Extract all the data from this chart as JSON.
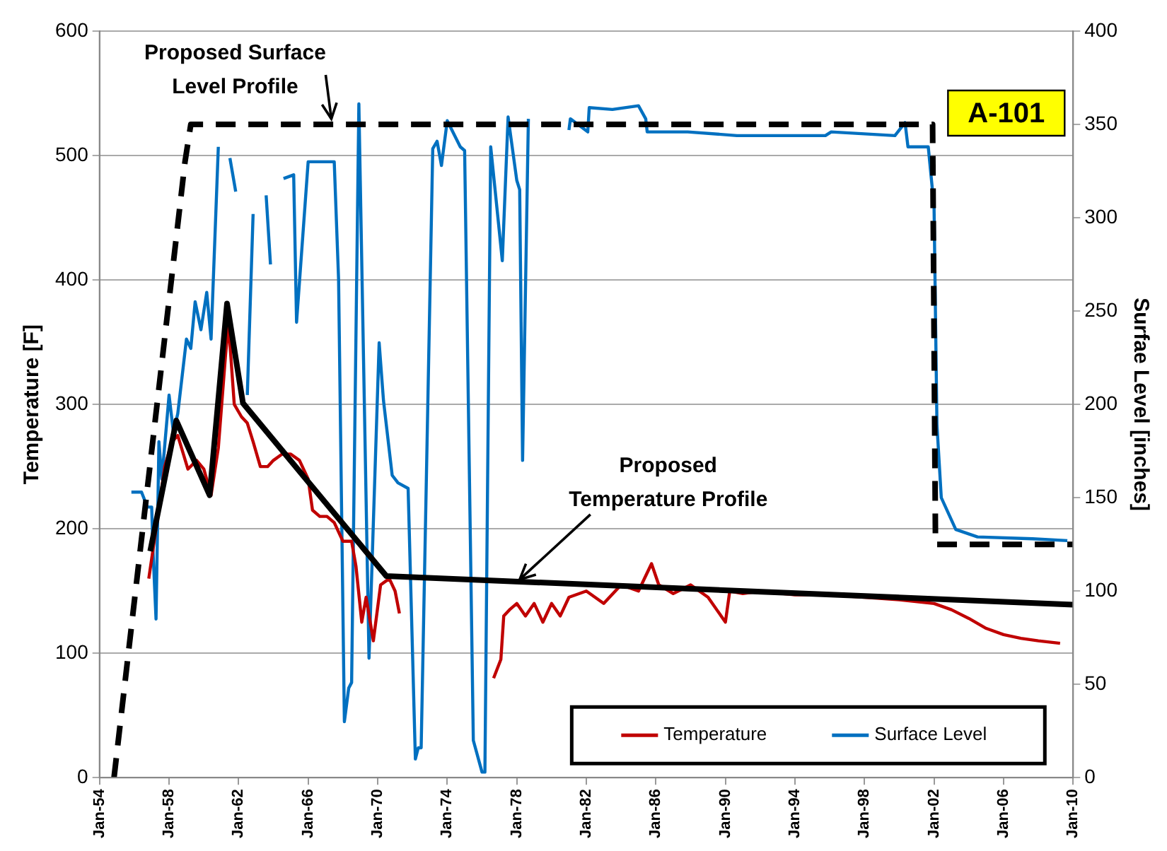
{
  "chart_data": {
    "type": "line",
    "ylabel": "Temperature [F]",
    "y2label": "Surfae Level [inches]",
    "xlim": [
      "1954-01",
      "2010-01"
    ],
    "xticks": [
      {
        "value": "1954-01",
        "label": "Jan-54"
      },
      {
        "value": "1958-01",
        "label": "Jan-58"
      },
      {
        "value": "1962-01",
        "label": "Jan-62"
      },
      {
        "value": "1966-01",
        "label": "Jan-66"
      },
      {
        "value": "1970-01",
        "label": "Jan-70"
      },
      {
        "value": "1974-01",
        "label": "Jan-74"
      },
      {
        "value": "1978-01",
        "label": "Jan-78"
      },
      {
        "value": "1982-01",
        "label": "Jan-82"
      },
      {
        "value": "1986-01",
        "label": "Jan-86"
      },
      {
        "value": "1990-01",
        "label": "Jan-90"
      },
      {
        "value": "1994-01",
        "label": "Jan-94"
      },
      {
        "value": "1998-01",
        "label": "Jan-98"
      },
      {
        "value": "2002-01",
        "label": "Jan-02"
      },
      {
        "value": "2006-01",
        "label": "Jan-06"
      },
      {
        "value": "2010-01",
        "label": "Jan-10"
      }
    ],
    "ylim": [
      0,
      600
    ],
    "yticks": [
      0,
      100,
      200,
      300,
      400,
      500,
      600
    ],
    "y2lim": [
      0,
      400
    ],
    "y2ticks": [
      0,
      50,
      100,
      150,
      200,
      250,
      300,
      350,
      400
    ],
    "grid": "y",
    "legend": "bottom right",
    "marker": "none",
    "series": [
      {
        "name": "Temperature",
        "color": "#c00000",
        "axis": "y",
        "x": [
          "1956-11",
          "1957-04",
          "1957-10",
          "1958-03",
          "1958-07",
          "1959-02",
          "1959-08",
          "1960-01",
          "1960-06",
          "1960-11",
          "1961-04",
          "1961-06",
          "1961-10",
          "1962-03",
          "1962-07",
          "1962-11",
          "1963-04",
          "1963-09",
          "1964-01",
          "1964-07",
          "1965-01",
          "1965-07",
          "1966-01",
          "1966-04",
          "1966-09",
          "1967-02",
          "1967-07",
          "1968-01",
          "1968-07",
          "1968-10",
          "1969-02",
          "1969-05",
          "1969-10",
          "1970-03",
          "1970-09",
          "1971-01",
          "1971-04",
          "1974-01",
          "1976-09",
          "1977-02",
          "1977-04",
          "1977-08",
          "1978-01",
          "1978-07",
          "1979-01",
          "1979-07",
          "1980-01",
          "1980-07",
          "1981-01",
          "1982-01",
          "1983-01",
          "1984-01",
          "1985-01",
          "1985-10",
          "1986-03",
          "1987-01",
          "1988-01",
          "1989-01",
          "1990-01",
          "1990-04",
          "1991-01",
          "1992-01",
          "1994-01",
          "1996-01",
          "1998-01",
          "2000-01",
          "2002-01",
          "2003-01",
          "2004-01",
          "2005-01",
          "2006-01",
          "2007-01",
          "2008-01",
          "2009-04"
        ],
        "values": [
          160,
          200,
          250,
          270,
          275,
          248,
          255,
          248,
          227,
          265,
          340,
          365,
          300,
          290,
          285,
          270,
          250,
          250,
          255,
          260,
          260,
          255,
          240,
          215,
          210,
          210,
          205,
          190,
          190,
          170,
          125,
          145,
          110,
          155,
          160,
          150,
          132,
          null,
          80,
          95,
          130,
          135,
          140,
          130,
          140,
          125,
          140,
          130,
          145,
          150,
          140,
          155,
          150,
          172,
          155,
          148,
          155,
          145,
          125,
          150,
          148,
          150,
          147,
          147,
          145,
          143,
          140,
          135,
          128,
          120,
          115,
          112,
          110,
          108
        ]
      },
      {
        "name": "Surface Level",
        "color": "#0070c0",
        "axis": "y2",
        "x": [
          "1955-11",
          "1956-06",
          "1956-10",
          "1957-01",
          "1957-02",
          "1957-04",
          "1957-06",
          "1957-08",
          "1958-01",
          "1958-04",
          "1958-07",
          "1959-01",
          "1959-04",
          "1959-07",
          "1959-11",
          "1960-03",
          "1960-06",
          "1960-11",
          "1961-03",
          "1961-07",
          "1961-11",
          "1962-03",
          "1962-07",
          "1962-11",
          "1963-03",
          "1963-08",
          "1963-11",
          "1964-04",
          "1964-08",
          "1965-03",
          "1965-05",
          "1966-01",
          "1967-07",
          "1967-10",
          "1968-02",
          "1968-05",
          "1968-07",
          "1968-12",
          "1969-07",
          "1970-02",
          "1970-05",
          "1970-11",
          "1971-03",
          "1971-10",
          "1972-03",
          "1972-05",
          "1972-07",
          "1973-03",
          "1973-06",
          "1973-09",
          "1974-01",
          "1974-10",
          "1975-01",
          "1975-07",
          "1976-01",
          "1976-03",
          "1976-07",
          "1977-03",
          "1977-07",
          "1978-01",
          "1978-03",
          "1978-05",
          "1978-09",
          "1980-01",
          "1981-01",
          "1981-02",
          "1982-02",
          "1982-03",
          "1983-07",
          "1985-01",
          "1985-06",
          "1985-07",
          "1987-11",
          "1990-09",
          "1993-07",
          "1995-10",
          "1996-02",
          "1999-10",
          "2000-05",
          "2000-07",
          "2001-09",
          "2002-01",
          "2002-03",
          "2002-06",
          "2003-04",
          "2004-07",
          "2007-09",
          "2009-09"
        ],
        "values": [
          153,
          153,
          145,
          145,
          120,
          85,
          180,
          160,
          205,
          185,
          195,
          235,
          230,
          255,
          240,
          260,
          235,
          338,
          null,
          332,
          314,
          null,
          205,
          302,
          null,
          312,
          275,
          null,
          321,
          323,
          244,
          330,
          330,
          267,
          30,
          48,
          51,
          361,
          64,
          233,
          202,
          162,
          158,
          155,
          10,
          16,
          16,
          337,
          341,
          328,
          352,
          338,
          336,
          20,
          3,
          3,
          338,
          277,
          354,
          320,
          315,
          170,
          353,
          null,
          347,
          353,
          346,
          359,
          358,
          360,
          353,
          346,
          346,
          344,
          344,
          344,
          346,
          344,
          351,
          338,
          338,
          306,
          189,
          150,
          133,
          129,
          128,
          127
        ]
      },
      {
        "color": "#000000",
        "axis": "y2",
        "line_style": "dashed",
        "x": [
          "1954-11",
          "1958-12",
          "1959-04",
          "2001-12",
          "2002-02",
          "2010-01"
        ],
        "values": [
          0,
          330,
          350,
          350,
          125,
          125
        ]
      },
      {
        "color": "#000000",
        "axis": "y",
        "line_style": "solid",
        "x": [
          "1956-12",
          "1958-06",
          "1960-05",
          "1961-05",
          "1962-04",
          "1970-07",
          "2010-01"
        ],
        "values": [
          182,
          287,
          227,
          381,
          301,
          162,
          139
        ]
      }
    ],
    "annotations": [
      {
        "text": "Proposed Surface Level Profile",
        "x": "1967-05",
        "y": 525
      },
      {
        "text": "Proposed Temperature Profile",
        "x": "1978-03",
        "y": 157
      },
      "A-101"
    ]
  }
}
